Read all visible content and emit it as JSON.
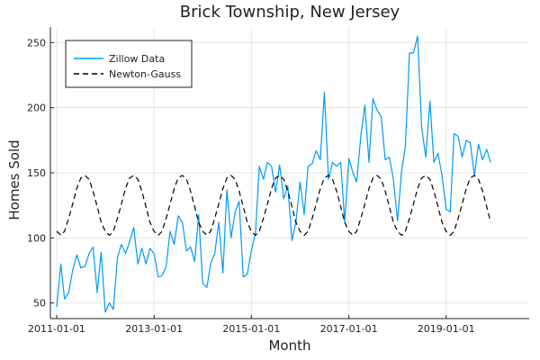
{
  "chart_data": {
    "type": "line",
    "title": "Brick Township, New Jersey",
    "xlabel": "Month",
    "ylabel": "Homes Sold",
    "x_range": [
      "2010-11-15",
      "2020-09-15"
    ],
    "ylim": [
      38,
      262
    ],
    "x_ticks": [
      "2011-01-01",
      "2013-01-01",
      "2015-01-01",
      "2017-01-01",
      "2019-01-01"
    ],
    "y_ticks": [
      50,
      100,
      150,
      200,
      250
    ],
    "grid": true,
    "legend_position": "top-left",
    "x_start": "2011-01",
    "x_interval": "1 month",
    "series": [
      {
        "name": "Zillow Data",
        "style": "solid",
        "color": "#009af9",
        "values": [
          47,
          80,
          53,
          58,
          75,
          87,
          77,
          78,
          88,
          93,
          58,
          89,
          43,
          50,
          45,
          85,
          95,
          88,
          97,
          108,
          80,
          92,
          80,
          92,
          88,
          70,
          71,
          78,
          105,
          95,
          117,
          112,
          90,
          93,
          82,
          118,
          65,
          62,
          80,
          88,
          112,
          73,
          137,
          100,
          120,
          128,
          70,
          72,
          90,
          104,
          155,
          145,
          158,
          155,
          135,
          156,
          130,
          140,
          98,
          112,
          143,
          118,
          155,
          157,
          167,
          160,
          212,
          145,
          158,
          155,
          158,
          112,
          161,
          150,
          143,
          178,
          202,
          158,
          207,
          198,
          193,
          160,
          162,
          145,
          113,
          152,
          170,
          242,
          242,
          255,
          185,
          162,
          205,
          158,
          165,
          148,
          122,
          120,
          180,
          178,
          162,
          175,
          173,
          148,
          172,
          160,
          168,
          158
        ],
        "values_note": ""
      },
      {
        "name": "Newton-Gauss",
        "style": "dashed",
        "color": "#000000",
        "amplitude_center": 125,
        "amplitude": 23,
        "period_months": 12,
        "values": [
          105,
          102,
          105,
          115,
          126,
          138,
          146,
          148,
          145,
          136,
          124,
          112,
          105,
          102,
          105,
          115,
          126,
          138,
          146,
          148,
          145,
          136,
          124,
          112,
          105,
          102,
          105,
          115,
          126,
          138,
          146,
          148,
          145,
          136,
          124,
          112,
          105,
          102,
          105,
          115,
          126,
          138,
          146,
          148,
          145,
          136,
          124,
          112,
          105,
          102,
          105,
          115,
          126,
          138,
          146,
          148,
          145,
          136,
          124,
          112,
          105,
          102,
          105,
          115,
          126,
          138,
          146,
          148,
          145,
          136,
          124,
          112,
          105,
          102,
          105,
          115,
          126,
          138,
          146,
          148,
          145,
          136,
          124,
          112,
          105,
          102,
          105,
          115,
          126,
          138,
          146,
          148,
          145,
          136,
          124,
          112,
          105,
          102,
          105,
          115,
          126,
          138,
          146,
          148,
          145,
          136,
          124,
          112
        ]
      }
    ]
  }
}
